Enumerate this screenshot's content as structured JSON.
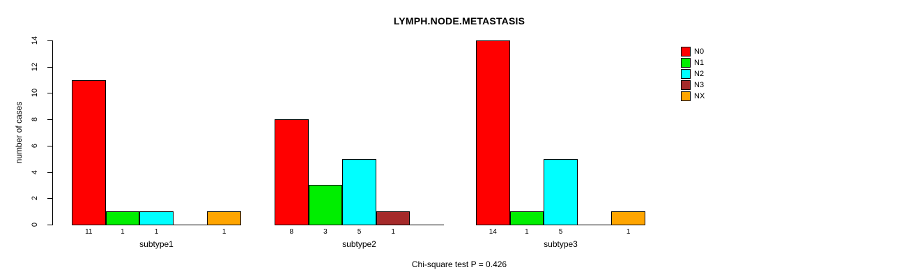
{
  "chart_data": {
    "type": "bar",
    "title": "LYMPH.NODE.METASTASIS",
    "ylabel": "number of cases",
    "xlabel": "",
    "ylim": [
      0,
      14
    ],
    "yticks": [
      0,
      2,
      4,
      6,
      8,
      10,
      12,
      14
    ],
    "categories": [
      "subtype1",
      "subtype2",
      "subtype3"
    ],
    "series": [
      {
        "name": "N0",
        "color": "#FF0000",
        "values": [
          11,
          8,
          14
        ]
      },
      {
        "name": "N1",
        "color": "#00EE00",
        "values": [
          1,
          3,
          1
        ]
      },
      {
        "name": "N2",
        "color": "#00FFFF",
        "values": [
          1,
          5,
          5
        ]
      },
      {
        "name": "N3",
        "color": "#A52A2A",
        "values": [
          0,
          1,
          0
        ]
      },
      {
        "name": "NX",
        "color": "#FFA500",
        "values": [
          1,
          0,
          1
        ]
      }
    ],
    "bar_value_labels": true,
    "show_zero_labels": false,
    "grid": false,
    "legend_position": "top-right",
    "annotation": "Chi-square test P = 0.426"
  }
}
